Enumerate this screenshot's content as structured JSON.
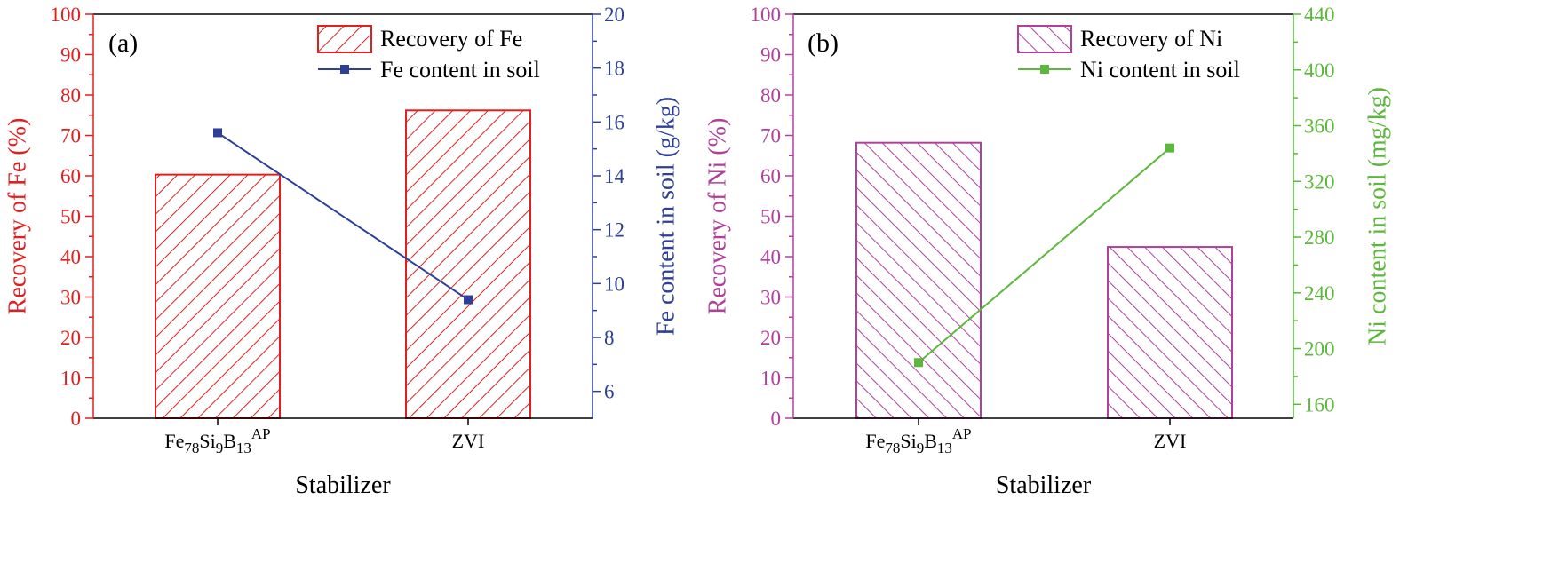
{
  "colors": {
    "fe_axis": "#e02020",
    "fe_line": "#2e3f9a",
    "ni_axis": "#b0409a",
    "ni_line": "#5cb83c",
    "frame": "#000000"
  },
  "chart_data": [
    {
      "type": "bar",
      "panel_label": "(a)",
      "categories": [
        {
          "base": "Fe",
          "sub1": "78",
          "mid1": "Si",
          "sub2": "9",
          "mid2": "B",
          "sub3": "13",
          "sup": "AP"
        },
        {
          "base": "ZVI",
          "sub1": "",
          "mid1": "",
          "sub2": "",
          "mid2": "",
          "sub3": "",
          "sup": ""
        }
      ],
      "xlabel": "Stabilizer",
      "y_left": {
        "label": "Recovery of Fe (%)",
        "lim": [
          0,
          100
        ],
        "ticks": [
          0,
          10,
          20,
          30,
          40,
          50,
          60,
          70,
          80,
          90,
          100
        ]
      },
      "y_right": {
        "label": "Fe content in soil (g/kg)",
        "lim": [
          5,
          20
        ],
        "ticks": [
          6,
          8,
          10,
          12,
          14,
          16,
          18,
          20
        ]
      },
      "series": [
        {
          "name": "Recovery of Fe",
          "kind": "bar",
          "axis": "left",
          "values": [
            60.3,
            76.2
          ],
          "hatch": "forward"
        },
        {
          "name": "Fe content in soil",
          "kind": "line",
          "axis": "right",
          "values": [
            15.6,
            9.4
          ]
        }
      ],
      "legend": "top-right"
    },
    {
      "type": "bar",
      "panel_label": "(b)",
      "categories": [
        {
          "base": "Fe",
          "sub1": "78",
          "mid1": "Si",
          "sub2": "9",
          "mid2": "B",
          "sub3": "13",
          "sup": "AP"
        },
        {
          "base": "ZVI",
          "sub1": "",
          "mid1": "",
          "sub2": "",
          "mid2": "",
          "sub3": "",
          "sup": ""
        }
      ],
      "xlabel": "Stabilizer",
      "y_left": {
        "label": "Recovery of Ni (%)",
        "lim": [
          0,
          100
        ],
        "ticks": [
          0,
          10,
          20,
          30,
          40,
          50,
          60,
          70,
          80,
          90,
          100
        ]
      },
      "y_right": {
        "label": "Ni content in soil (mg/kg)",
        "lim": [
          150,
          440
        ],
        "ticks": [
          160,
          200,
          240,
          280,
          320,
          360,
          400,
          440
        ]
      },
      "series": [
        {
          "name": "Recovery of Ni",
          "kind": "bar",
          "axis": "left",
          "values": [
            68.2,
            42.4
          ],
          "hatch": "backward"
        },
        {
          "name": "Ni content in soil",
          "kind": "line",
          "axis": "right",
          "values": [
            190,
            344
          ]
        }
      ],
      "legend": "top-right"
    }
  ]
}
